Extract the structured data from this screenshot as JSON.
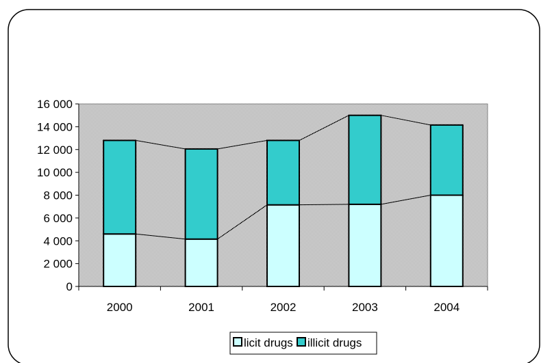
{
  "chart_data": {
    "type": "bar",
    "stacked": true,
    "categories": [
      "2000",
      "2001",
      "2002",
      "2003",
      "2004"
    ],
    "series": [
      {
        "name": "licit drugs",
        "values": [
          4600,
          4150,
          7150,
          7200,
          8000
        ],
        "color": "#ccffff"
      },
      {
        "name": "illicit drugs",
        "values": [
          8200,
          7900,
          5650,
          7800,
          6150
        ],
        "color": "#33cccc"
      }
    ],
    "ylim": [
      0,
      16000
    ],
    "yticks": [
      "0",
      "2 000",
      "4 000",
      "6 000",
      "8 000",
      "10 000",
      "12 000",
      "14 000",
      "16 000"
    ],
    "grid": false,
    "plot_background": "#d9d9d9",
    "series_lines": true,
    "legend_position": "bottom-center",
    "title": "",
    "xlabel": "",
    "ylabel": ""
  }
}
